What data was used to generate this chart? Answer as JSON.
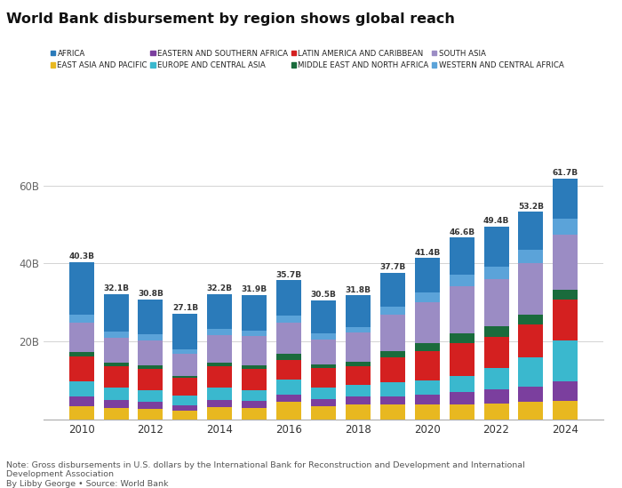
{
  "title": "World Bank disbursement by region shows global reach",
  "years": [
    2010,
    2011,
    2012,
    2013,
    2014,
    2015,
    2016,
    2017,
    2018,
    2019,
    2020,
    2021,
    2022,
    2023,
    2024
  ],
  "totals": [
    40.3,
    32.1,
    30.8,
    27.1,
    32.2,
    31.9,
    35.7,
    30.5,
    31.8,
    37.7,
    41.4,
    46.6,
    49.4,
    53.2,
    61.7
  ],
  "regions": [
    "AFRICA",
    "EAST ASIA AND PACIFIC",
    "EASTERN AND SOUTHERN AFRICA",
    "EUROPE AND CENTRAL ASIA",
    "LATIN AMERICA AND CARIBBEAN",
    "MIDDLE EAST AND NORTH AFRICA",
    "SOUTH ASIA",
    "WESTERN AND CENTRAL AFRICA"
  ],
  "colors": {
    "AFRICA": "#2b7bba",
    "EAST ASIA AND PACIFIC": "#e8b820",
    "EASTERN AND SOUTHERN AFRICA": "#7b3f9e",
    "EUROPE AND CENTRAL ASIA": "#3ab8ce",
    "LATIN AMERICA AND CARIBBEAN": "#d42020",
    "MIDDLE EAST AND NORTH AFRICA": "#1a6b3c",
    "SOUTH ASIA": "#9b8cc4",
    "WESTERN AND CENTRAL AFRICA": "#5ba3d9"
  },
  "stack_order": [
    "EAST ASIA AND PACIFIC",
    "EASTERN AND SOUTHERN AFRICA",
    "EUROPE AND CENTRAL ASIA",
    "LATIN AMERICA AND CARIBBEAN",
    "MIDDLE EAST AND NORTH AFRICA",
    "SOUTH ASIA",
    "WESTERN AND CENTRAL AFRICA",
    "AFRICA"
  ],
  "legend_order": [
    "AFRICA",
    "EAST ASIA AND PACIFIC",
    "EASTERN AND SOUTHERN AFRICA",
    "EUROPE AND CENTRAL ASIA",
    "LATIN AMERICA AND CARIBBEAN",
    "MIDDLE EAST AND NORTH AFRICA",
    "SOUTH ASIA",
    "WESTERN AND CENTRAL AFRICA"
  ],
  "data": {
    "EAST ASIA AND PACIFIC": [
      3.5,
      3.0,
      2.8,
      2.2,
      3.2,
      3.0,
      4.5,
      3.5,
      4.0,
      3.8,
      4.0,
      3.8,
      4.2,
      4.5,
      4.8
    ],
    "EASTERN AND SOUTHERN AFRICA": [
      2.5,
      2.0,
      1.8,
      1.5,
      1.8,
      1.8,
      2.0,
      1.8,
      2.0,
      2.2,
      2.5,
      3.2,
      3.5,
      4.0,
      5.0
    ],
    "EUROPE AND CENTRAL ASIA": [
      3.8,
      3.2,
      3.0,
      2.5,
      3.2,
      2.8,
      3.8,
      3.0,
      2.8,
      3.5,
      3.5,
      4.2,
      5.5,
      7.5,
      10.5
    ],
    "LATIN AMERICA AND CARIBBEAN": [
      6.5,
      5.5,
      5.5,
      4.5,
      5.5,
      5.5,
      5.0,
      5.0,
      5.0,
      6.5,
      7.5,
      8.5,
      8.0,
      8.5,
      10.5
    ],
    "MIDDLE EAST AND NORTH AFRICA": [
      1.0,
      0.8,
      0.8,
      0.6,
      1.0,
      0.8,
      1.5,
      0.8,
      1.0,
      1.5,
      2.2,
      2.5,
      2.8,
      2.5,
      2.5
    ],
    "SOUTH ASIA": [
      7.5,
      6.5,
      6.5,
      5.5,
      7.0,
      7.5,
      8.0,
      6.5,
      7.5,
      9.5,
      10.5,
      12.0,
      12.0,
      13.0,
      14.0
    ],
    "WESTERN AND CENTRAL AFRICA": [
      2.0,
      1.5,
      1.5,
      1.2,
      1.5,
      1.5,
      1.8,
      1.5,
      1.5,
      2.0,
      2.5,
      3.0,
      3.2,
      3.5,
      4.2
    ],
    "AFRICA": [
      13.5,
      9.6,
      8.9,
      9.1,
      9.0,
      9.0,
      9.1,
      8.4,
      8.0,
      8.7,
      8.7,
      9.4,
      10.2,
      9.7,
      10.2
    ]
  },
  "note": "Note: Gross disbursements in U.S. dollars by the International Bank for Reconstruction and Development and International\nDevelopment Association",
  "source": "By Libby George • Source: World Bank",
  "ylim": [
    0,
    70
  ],
  "yticks": [
    20,
    40,
    60
  ],
  "ytick_labels": [
    "20B",
    "40B",
    "60B"
  ],
  "background_color": "#ffffff",
  "bar_width": 0.72
}
